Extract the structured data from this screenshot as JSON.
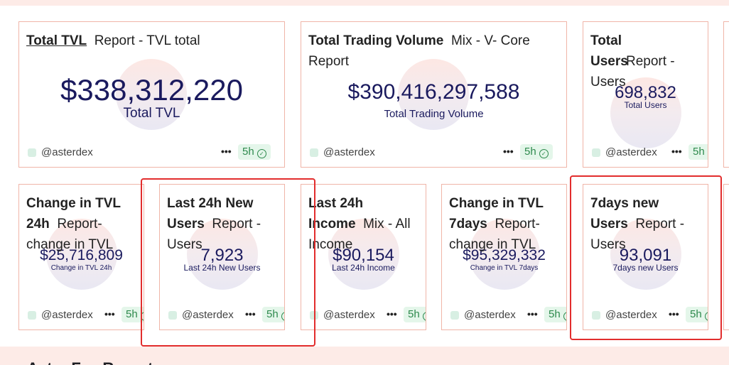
{
  "section_next_title": "Aster Fee Report",
  "cards": [
    {
      "id": "total-tvl",
      "title": "Total TVL",
      "subtitle": "Report - TVL total",
      "value": "$338,312,220",
      "caption": "Total TVL",
      "handle": "@asterdex",
      "badge": "5h"
    },
    {
      "id": "total-trading-volume",
      "title": "Total Trading Volume",
      "subtitle": "Mix - V- Core Report",
      "value": "$390,416,297,588",
      "caption": "Total Trading Volume",
      "handle": "@asterdex",
      "badge": "5h"
    },
    {
      "id": "total-users",
      "title": "Total Users",
      "subtitle": "Report - Users",
      "value": "698,832",
      "caption": "Total Users",
      "handle": "@asterdex",
      "badge": "5h"
    },
    {
      "id": "change-tvl-24h",
      "title": "Change in TVL 24h",
      "subtitle": "Report- change in TVL",
      "value": "$25,716,809",
      "caption": "Change in TVL 24h",
      "handle": "@asterdex",
      "badge": "5h"
    },
    {
      "id": "last-24h-new-users",
      "title": "Last 24h New Users",
      "subtitle": "Report - Users",
      "value": "7,923",
      "caption": "Last 24h New Users",
      "handle": "@asterdex",
      "badge": "5h"
    },
    {
      "id": "last-24h-income",
      "title": "Last 24h Income",
      "subtitle": "Mix - All Income",
      "value": "$90,154",
      "caption": "Last 24h Income",
      "handle": "@asterdex",
      "badge": "5h"
    },
    {
      "id": "change-tvl-7days",
      "title": "Change in TVL 7days",
      "subtitle": "Report- change in TVL",
      "value": "$95,329,332",
      "caption": "Change in TVL 7days",
      "handle": "@asterdex",
      "badge": "5h"
    },
    {
      "id": "7days-new-users",
      "title": "7days new Users",
      "subtitle": "Report - Users",
      "value": "93,091",
      "caption": "7days new Users",
      "handle": "@asterdex",
      "badge": "5h"
    }
  ],
  "more_glyph": "•••",
  "colors": {
    "border": "#f0b5a8",
    "value": "#1a1a5e",
    "badge_bg": "#e4f6ea",
    "badge_fg": "#2e8a4d",
    "highlight": "#e22d2d",
    "band": "#fdebe7"
  }
}
